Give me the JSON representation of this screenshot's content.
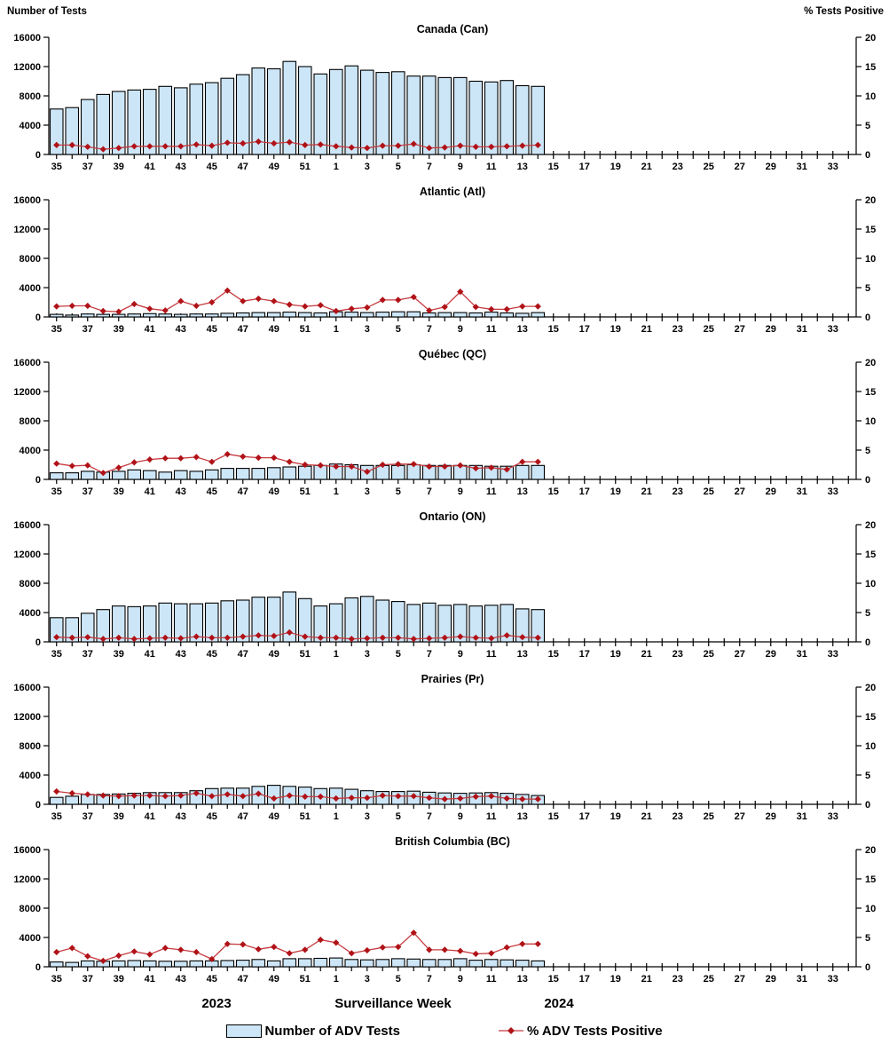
{
  "header": {
    "left_axis_title": "Number of Tests",
    "right_axis_title": "% Tests Positive"
  },
  "footer": {
    "year_left": "2023",
    "axis_title": "Surveillance Week",
    "year_right": "2024"
  },
  "legend": {
    "bars_label": "Number of ADV Tests",
    "line_label": "% ADV Tests Positive"
  },
  "colors": {
    "bar_fill": "#CDE6F7",
    "bar_border": "#000000",
    "line": "#C63B40",
    "marker": "#B01217",
    "axis": "#000000"
  },
  "chart_data": {
    "type": "bar+line-combo",
    "x_label": "Surveillance Week",
    "x_weeks": [
      35,
      36,
      37,
      38,
      39,
      40,
      41,
      42,
      43,
      44,
      45,
      46,
      47,
      48,
      49,
      50,
      51,
      52,
      1,
      2,
      3,
      4,
      5,
      6,
      7,
      8,
      9,
      10,
      11,
      12,
      13,
      14,
      15,
      16,
      17,
      18,
      19,
      20,
      21,
      22,
      23,
      24,
      25,
      26,
      27,
      28,
      29,
      30,
      31,
      32,
      33,
      34
    ],
    "x_tick_label_step": 2,
    "weeks_with_data": 32,
    "y_left": {
      "label": "Number of Tests",
      "min": 0,
      "max": 16000,
      "ticks": [
        0,
        4000,
        8000,
        12000,
        16000
      ]
    },
    "y_right": {
      "label": "% Tests Positive",
      "min": 0,
      "max": 20,
      "ticks": [
        0,
        5,
        10,
        15,
        20
      ]
    },
    "bar_series_name": "Number of ADV Tests",
    "line_series_name": "% ADV Tests Positive",
    "panels": [
      {
        "title": "Canada (Can)",
        "tests": [
          6200,
          6400,
          7500,
          8200,
          8600,
          8800,
          8900,
          9300,
          9100,
          9600,
          9800,
          10400,
          10900,
          11800,
          11700,
          12700,
          12000,
          11000,
          11600,
          12100,
          11500,
          11200,
          11300,
          10700,
          10700,
          10500,
          10500,
          10000,
          9900,
          10100,
          9400,
          9300
        ],
        "pct_positive": [
          1.6,
          1.6,
          1.3,
          0.9,
          1.1,
          1.4,
          1.4,
          1.4,
          1.4,
          1.7,
          1.5,
          2.0,
          1.9,
          2.2,
          1.9,
          2.1,
          1.6,
          1.7,
          1.4,
          1.2,
          1.1,
          1.5,
          1.5,
          1.8,
          1.1,
          1.2,
          1.5,
          1.3,
          1.3,
          1.4,
          1.5,
          1.6
        ]
      },
      {
        "title": "Atlantic (Atl)",
        "tests": [
          350,
          250,
          400,
          350,
          350,
          400,
          450,
          400,
          350,
          400,
          400,
          500,
          550,
          600,
          600,
          650,
          600,
          550,
          700,
          650,
          600,
          650,
          700,
          700,
          550,
          600,
          600,
          550,
          650,
          550,
          500,
          600
        ],
        "pct_positive": [
          1.8,
          1.9,
          1.9,
          1.0,
          0.9,
          2.2,
          1.4,
          1.1,
          2.7,
          1.9,
          2.5,
          4.5,
          2.7,
          3.1,
          2.7,
          2.1,
          1.8,
          2.0,
          1.0,
          1.4,
          1.6,
          2.9,
          2.9,
          3.4,
          1.1,
          1.7,
          4.3,
          1.7,
          1.3,
          1.3,
          1.8,
          1.8
        ]
      },
      {
        "title": "Québec (QC)",
        "tests": [
          900,
          900,
          1100,
          1000,
          1100,
          1300,
          1200,
          1000,
          1200,
          1100,
          1300,
          1500,
          1500,
          1500,
          1600,
          1700,
          1800,
          1900,
          2100,
          2000,
          1900,
          1900,
          1900,
          2000,
          1900,
          1900,
          1900,
          1900,
          1800,
          1800,
          1900,
          1900
        ],
        "pct_positive": [
          2.7,
          2.3,
          2.4,
          1.1,
          2.0,
          2.9,
          3.4,
          3.6,
          3.6,
          3.8,
          3.0,
          4.3,
          3.9,
          3.7,
          3.7,
          3.0,
          2.5,
          2.4,
          2.2,
          2.2,
          1.3,
          2.5,
          2.6,
          2.6,
          2.2,
          2.2,
          2.4,
          1.9,
          2.0,
          1.7,
          3.0,
          3.0
        ]
      },
      {
        "title": "Ontario (ON)",
        "tests": [
          3300,
          3300,
          3900,
          4400,
          4900,
          4800,
          4900,
          5300,
          5200,
          5200,
          5300,
          5600,
          5700,
          6100,
          6100,
          6800,
          5900,
          4900,
          5200,
          6000,
          6200,
          5700,
          5500,
          5100,
          5300,
          5000,
          5100,
          4900,
          5000,
          5100,
          4500,
          4400
        ],
        "pct_positive": [
          0.8,
          0.7,
          0.8,
          0.5,
          0.7,
          0.5,
          0.6,
          0.7,
          0.6,
          0.9,
          0.7,
          0.7,
          0.9,
          1.1,
          1.0,
          1.6,
          0.9,
          0.7,
          0.7,
          0.5,
          0.6,
          0.7,
          0.7,
          0.5,
          0.6,
          0.7,
          0.9,
          0.7,
          0.6,
          1.1,
          0.8,
          0.7
        ]
      },
      {
        "title": "Prairies (Pr)",
        "tests": [
          950,
          1100,
          1350,
          1350,
          1400,
          1500,
          1600,
          1600,
          1600,
          1850,
          2150,
          2200,
          2200,
          2450,
          2600,
          2450,
          2350,
          2150,
          2200,
          2050,
          1850,
          1750,
          1750,
          1800,
          1650,
          1550,
          1500,
          1550,
          1600,
          1500,
          1350,
          1200
        ],
        "pct_positive": [
          2.2,
          1.9,
          1.7,
          1.5,
          1.4,
          1.5,
          1.5,
          1.4,
          1.5,
          1.9,
          1.4,
          1.7,
          1.4,
          1.8,
          1.0,
          1.5,
          1.3,
          1.3,
          1.0,
          1.1,
          1.1,
          1.5,
          1.4,
          1.4,
          1.1,
          0.9,
          1.0,
          1.3,
          1.4,
          1.0,
          0.9,
          0.9
        ]
      },
      {
        "title": "British Columbia (BC)",
        "tests": [
          650,
          600,
          800,
          750,
          800,
          850,
          800,
          750,
          750,
          800,
          800,
          850,
          900,
          1000,
          800,
          1100,
          1100,
          1150,
          1200,
          1000,
          950,
          1000,
          1100,
          1050,
          1000,
          1000,
          1100,
          900,
          1000,
          950,
          900,
          800
        ],
        "pct_positive": [
          2.5,
          3.2,
          1.8,
          1.0,
          1.9,
          2.6,
          2.1,
          3.2,
          2.9,
          2.5,
          1.3,
          3.9,
          3.8,
          3.0,
          3.4,
          2.3,
          2.9,
          4.6,
          4.1,
          2.3,
          2.8,
          3.3,
          3.4,
          5.8,
          2.9,
          2.9,
          2.7,
          2.2,
          2.3,
          3.3,
          3.9,
          3.9
        ]
      }
    ]
  }
}
